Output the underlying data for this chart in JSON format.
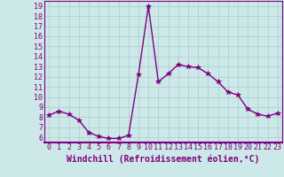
{
  "x": [
    0,
    1,
    2,
    3,
    4,
    5,
    6,
    7,
    8,
    9,
    10,
    11,
    12,
    13,
    14,
    15,
    16,
    17,
    18,
    19,
    20,
    21,
    22,
    23
  ],
  "y": [
    8.2,
    8.6,
    8.3,
    7.7,
    6.5,
    6.1,
    5.9,
    5.9,
    6.2,
    12.2,
    19.0,
    11.5,
    12.3,
    13.2,
    13.0,
    12.9,
    12.3,
    11.5,
    10.5,
    10.2,
    8.8,
    8.3,
    8.1,
    8.4
  ],
  "line_color": "#800080",
  "marker": "*",
  "markersize": 4,
  "linewidth": 1.0,
  "bg_color": "#cce8e8",
  "grid_color": "#aacccc",
  "xlabel": "Windchill (Refroidissement éolien,°C)",
  "xlabel_fontsize": 7,
  "tick_fontsize": 6,
  "ylim": [
    5.5,
    19.5
  ],
  "yticks": [
    6,
    7,
    8,
    9,
    10,
    11,
    12,
    13,
    14,
    15,
    16,
    17,
    18,
    19
  ],
  "xlim": [
    -0.5,
    23.5
  ],
  "xticks": [
    0,
    1,
    2,
    3,
    4,
    5,
    6,
    7,
    8,
    9,
    10,
    11,
    12,
    13,
    14,
    15,
    16,
    17,
    18,
    19,
    20,
    21,
    22,
    23
  ],
  "spine_color": "#800080",
  "axis_bg": "#cce8e8"
}
